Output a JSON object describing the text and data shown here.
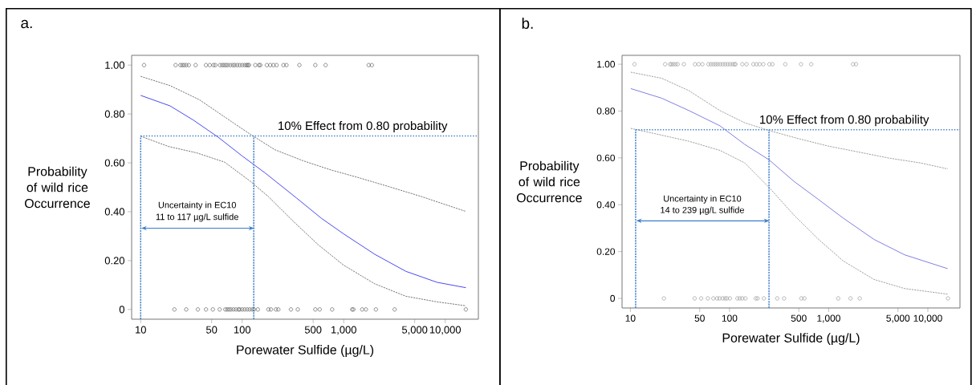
{
  "chart_data": [
    {
      "type": "line",
      "title": "a.",
      "xlabel": "Porewater Sulfide  (µg/L)",
      "ylabel": "Probability of wild rice Occurrence",
      "log": "x",
      "xlim": [
        8.15,
        21200
      ],
      "ylim": [
        -0.04,
        1.04
      ],
      "xticks": [
        10,
        50,
        100,
        500,
        {
          "value": 1000,
          "label": "1,000"
        },
        {
          "value": 5000,
          "label": "5,000"
        },
        {
          "value": 10000,
          "label": "10,000"
        }
      ],
      "yticks": [
        0,
        {
          "value": 0.2,
          "label": "0.20"
        },
        {
          "value": 0.4,
          "label": "0.40"
        },
        {
          "value": 0.6,
          "label": "0.60"
        },
        {
          "value": 0.8,
          "label": "0.80"
        },
        {
          "value": 1,
          "label": "1.00"
        }
      ],
      "series": [
        {
          "color": "#4a4af0",
          "line_style": "solid",
          "x": [
            10,
            19.5,
            33,
            58,
            100,
            169,
            343,
            603,
            1000,
            2018,
            4090,
            8310,
            15970
          ],
          "values": [
            0.876,
            0.833,
            0.775,
            0.705,
            0.628,
            0.558,
            0.456,
            0.373,
            0.309,
            0.226,
            0.156,
            0.111,
            0.089
          ]
        },
        {
          "color": "#555555",
          "line_style": "dashed",
          "x": [
            10,
            19.5,
            38,
            67,
            119,
            209,
            395,
            748,
            1413,
            2870,
            5830,
            15970
          ],
          "values": [
            0.954,
            0.916,
            0.858,
            0.788,
            0.718,
            0.654,
            0.609,
            0.571,
            0.539,
            0.501,
            0.462,
            0.401
          ]
        },
        {
          "color": "#555555",
          "line_style": "dashed",
          "x": [
            10,
            18.8,
            35.5,
            67,
            119,
            181,
            320,
            563,
            1000,
            2018,
            4090,
            8310,
            15970
          ],
          "values": [
            0.709,
            0.667,
            0.641,
            0.603,
            0.526,
            0.462,
            0.36,
            0.264,
            0.181,
            0.105,
            0.054,
            0.031,
            0.015
          ]
        },
        {
          "type": "scatter",
          "marker": "circle",
          "color": "#444444",
          "x": [
            10.8,
            22.1,
            24.6,
            25.7,
            26.8,
            28.1,
            29.8,
            34.8,
            44,
            47.9,
            52.1,
            54.4,
            60.5,
            63.6,
            66.3,
            69.2,
            72.2,
            76.4,
            80.9,
            84.4,
            89.3,
            94.5,
            100,
            105.8,
            110.4,
            113.6,
            116.8,
            134.7,
            146.6,
            150.8,
            175,
            189,
            203,
            218,
            255,
            273,
            366,
            525,
            663,
            1762,
            1892,
            21.5,
            28.1,
            36.6,
            44,
            51.4,
            60,
            68.2,
            71.2,
            74.3,
            77.5,
            82,
            86.8,
            91.9,
            94.5,
            100,
            105.8,
            112,
            118.5,
            125.5,
            130.9,
            142.5,
            181,
            192,
            215,
            227,
            302,
            353,
            525,
            580,
            769,
            1211,
            1246,
            1519,
            1654,
            2075,
            3173,
            15960
          ],
          "values": [
            1,
            1,
            1,
            1,
            1,
            1,
            1,
            1,
            1,
            1,
            1,
            1,
            1,
            1,
            1,
            1,
            1,
            1,
            1,
            1,
            1,
            1,
            1,
            1,
            1,
            1,
            1,
            1,
            1,
            1,
            1,
            1,
            1,
            1,
            1,
            1,
            1,
            1,
            1,
            1,
            1,
            0,
            0,
            0,
            0,
            0,
            0,
            0,
            0,
            0,
            0,
            0,
            0,
            0,
            0,
            0,
            0,
            0,
            0,
            0,
            0,
            0,
            0,
            0,
            0,
            0,
            0,
            0,
            0,
            0,
            0,
            0,
            0,
            0,
            0,
            0,
            0,
            0
          ]
        }
      ],
      "ref_lines": [
        {
          "axis": "y",
          "value": 0.71,
          "label": "10% Effect from 0.80 probability",
          "color": "#3a7dc9",
          "line_style": "dotted"
        },
        {
          "axis": "x",
          "value": 10,
          "color": "#3a7dc9",
          "line_style": "dashed"
        },
        {
          "axis": "x",
          "value": 130,
          "color": "#3a7dc9",
          "line_style": "dashed"
        }
      ],
      "annotations": [
        "Uncertainty in EC10",
        "11 to 117 µg/L sulfide"
      ]
    },
    {
      "type": "line",
      "title": "b.",
      "xlabel": "Porewater Sulfide  (µg/L)",
      "ylabel": "Probability of wild rice Occurrence",
      "log": "x",
      "xlim": [
        8.24,
        21100
      ],
      "ylim": [
        -0.041,
        1.038
      ],
      "xticks": [
        10,
        50,
        100,
        500,
        {
          "value": 1000,
          "label": "1,000"
        },
        {
          "value": 5000,
          "label": "5,000"
        },
        {
          "value": 10000,
          "label": "10,000"
        }
      ],
      "yticks": [
        0,
        {
          "value": 0.2,
          "label": "0.20"
        },
        {
          "value": 0.4,
          "label": "0.40"
        },
        {
          "value": 0.6,
          "label": "0.60"
        },
        {
          "value": 0.8,
          "label": "0.80"
        },
        {
          "value": 1,
          "label": "1.00"
        }
      ],
      "series": [
        {
          "color": "#8080e0",
          "line_style": "solid",
          "x": [
            10.1,
            20.7,
            39,
            80,
            142,
            250,
            446,
            791,
            1400,
            2860,
            5840,
            15850
          ],
          "values": [
            0.896,
            0.855,
            0.802,
            0.737,
            0.658,
            0.592,
            0.5,
            0.422,
            0.343,
            0.252,
            0.186,
            0.127
          ]
        },
        {
          "color": "#888888",
          "line_style": "dashed",
          "x": [
            10.1,
            20.7,
            39,
            80,
            142,
            250,
            478,
            977,
            2000,
            4070,
            8300,
            15850
          ],
          "values": [
            0.966,
            0.94,
            0.887,
            0.802,
            0.75,
            0.717,
            0.684,
            0.651,
            0.625,
            0.599,
            0.579,
            0.553
          ]
        },
        {
          "color": "#888888",
          "line_style": "dashed",
          "x": [
            10.1,
            20.7,
            39,
            80,
            142,
            250,
            446,
            791,
            1400,
            2860,
            5840,
            15850
          ],
          "values": [
            0.726,
            0.697,
            0.671,
            0.632,
            0.579,
            0.474,
            0.356,
            0.252,
            0.16,
            0.081,
            0.042,
            0.018
          ]
        },
        {
          "type": "scatter",
          "marker": "circle",
          "color": "#888888",
          "x": [
            11,
            22.4,
            25.1,
            26,
            27.2,
            28.6,
            30,
            34.6,
            44.8,
            48.8,
            53.2,
            61.3,
            64.9,
            68.7,
            72.3,
            76,
            80.4,
            85.2,
            90.2,
            95.5,
            101,
            107,
            112,
            115,
            134.5,
            148.6,
            174,
            187,
            201,
            219,
            252,
            271,
            365,
            526,
            666,
            1758,
            1888,
            21.8,
            44.5,
            51.7,
            60.4,
            68.7,
            74.9,
            79.3,
            85.2,
            90.2,
            94.1,
            101,
            120,
            127,
            134.5,
            144.5,
            184,
            192,
            222,
            303,
            355,
            530,
            569,
            1248,
            1661,
            2057,
            15960
          ],
          "values": [
            1,
            1,
            1,
            1,
            1,
            1,
            1,
            1,
            1,
            1,
            1,
            1,
            1,
            1,
            1,
            1,
            1,
            1,
            1,
            1,
            1,
            1,
            1,
            1,
            1,
            1,
            1,
            1,
            1,
            1,
            1,
            1,
            1,
            1,
            1,
            1,
            1,
            0,
            0,
            0,
            0,
            0,
            0,
            0,
            0,
            0,
            0,
            0,
            0,
            0,
            0,
            0,
            0,
            0,
            0,
            0,
            0,
            0,
            0,
            0,
            0,
            0,
            0
          ]
        }
      ],
      "ref_lines": [
        {
          "axis": "y",
          "value": 0.72,
          "label": "10% Effect from 0.80 probability",
          "color": "#3a7dc9",
          "line_style": "dotted"
        },
        {
          "axis": "x",
          "value": 11.3,
          "color": "#3a7dc9",
          "line_style": "dashed"
        },
        {
          "axis": "x",
          "value": 250,
          "color": "#3a7dc9",
          "line_style": "dashed"
        }
      ],
      "annotations": [
        "Uncertainty in EC10",
        "14 to 239 µg/L sulfide"
      ]
    }
  ]
}
